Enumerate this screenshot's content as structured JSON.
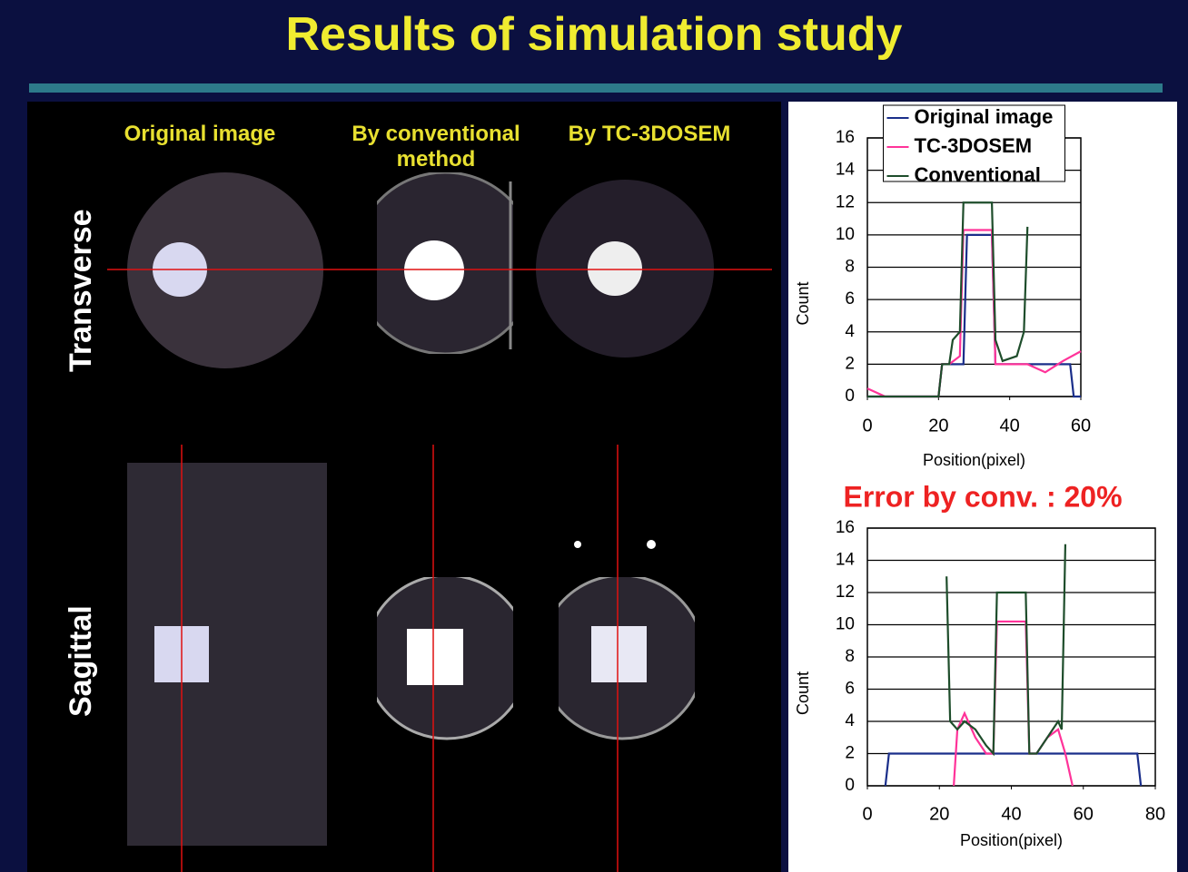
{
  "title": "Results of simulation study",
  "panels": {
    "columns": [
      "Original image",
      "By conventional method",
      "By TC-3DOSEM"
    ],
    "rows": [
      "Transverse",
      "Sagittal"
    ]
  },
  "chart_data": [
    {
      "type": "line",
      "legend": "top",
      "grid": true,
      "ylabel": "Count",
      "xlabel": "Position(pixel)",
      "xlim": [
        0,
        60
      ],
      "xticks": [
        0,
        20,
        40,
        60
      ],
      "ylim": [
        0,
        16
      ],
      "yticks": [
        0,
        2,
        4,
        6,
        8,
        10,
        12,
        14,
        16
      ],
      "series": [
        {
          "name": "Original image",
          "color": "#1a2e8a",
          "x": [
            0,
            20,
            21,
            27,
            28,
            35,
            36,
            57,
            58,
            60
          ],
          "values": [
            0,
            0,
            2,
            2,
            10,
            10,
            2,
            2,
            0,
            0
          ]
        },
        {
          "name": "TC-3DOSEM",
          "color": "#ff3399",
          "x": [
            0,
            5,
            20,
            21,
            23,
            26,
            27,
            35,
            36,
            45,
            50,
            55,
            60
          ],
          "values": [
            0.5,
            0,
            0,
            2,
            2,
            2.5,
            10.3,
            10.3,
            2,
            2,
            1.5,
            2.2,
            2.8
          ]
        },
        {
          "name": "Conventional",
          "color": "#1e4d2b",
          "x": [
            0,
            20,
            21,
            23,
            24,
            26,
            27,
            35,
            36,
            38,
            42,
            44,
            45
          ],
          "values": [
            0,
            0,
            2,
            2,
            3.5,
            4,
            12,
            12,
            3.5,
            2.2,
            2.5,
            4,
            10.5
          ]
        }
      ]
    },
    {
      "type": "line",
      "grid": true,
      "title": "Error by conv. : 20%",
      "ylabel": "Count",
      "xlabel": "Position(pixel)",
      "xlim": [
        0,
        80
      ],
      "xticks": [
        0,
        20,
        40,
        60,
        80
      ],
      "ylim": [
        0,
        16
      ],
      "yticks": [
        0,
        2,
        4,
        6,
        8,
        10,
        12,
        14,
        16
      ],
      "series": [
        {
          "color": "#1a2e8a",
          "x": [
            5,
            6,
            75,
            76
          ],
          "values": [
            0,
            2,
            2,
            0
          ]
        },
        {
          "color": "#ff3399",
          "x": [
            24,
            25,
            27,
            30,
            33,
            35,
            36,
            44,
            45,
            47,
            50,
            53,
            55,
            57
          ],
          "values": [
            0,
            3.5,
            4.5,
            3,
            2,
            2,
            10.2,
            10.2,
            2,
            2,
            3,
            3.5,
            2,
            0
          ]
        },
        {
          "color": "#1e4d2b",
          "x": [
            22,
            23,
            25,
            27,
            30,
            33,
            35,
            36,
            44,
            45,
            47,
            50,
            53,
            54,
            55
          ],
          "values": [
            13,
            4,
            3.5,
            4,
            3.5,
            2.5,
            2,
            12,
            12,
            2,
            2,
            3,
            4,
            3.5,
            15
          ]
        }
      ]
    }
  ]
}
